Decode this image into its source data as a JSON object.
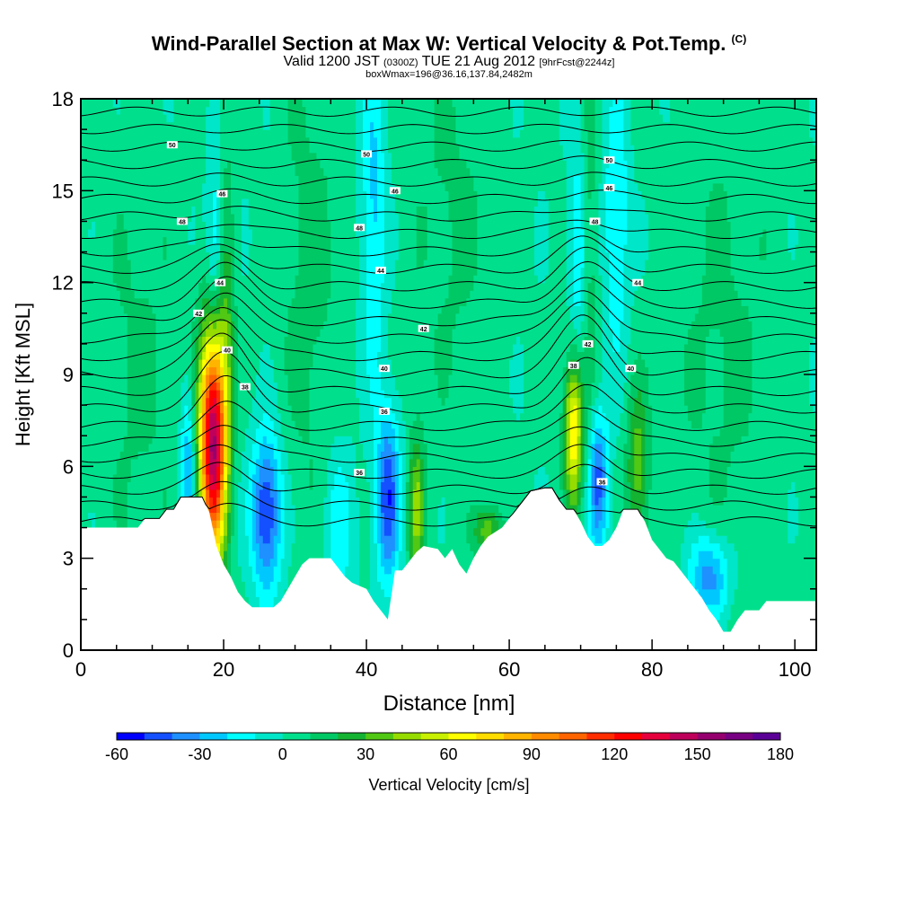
{
  "chart_data": {
    "type": "heatmap",
    "title": "Wind-Parallel Section at Max W: Vertical Velocity & Pot.Temp.",
    "title_mark": "(C)",
    "subtitle_main_a": "Valid 1200 JST",
    "subtitle_small_a": "(0300Z)",
    "subtitle_main_b": "TUE 21 Aug 2012",
    "subtitle_small_b": "[9hrFcst@2244z]",
    "subtitle2": "boxWmax=196@36.16,137.84,2482m",
    "xlabel": "Distance [nm]",
    "ylabel": "Height [Kft MSL]",
    "xlim": [
      0,
      103
    ],
    "ylim": [
      0,
      18
    ],
    "x_ticks": [
      "0",
      "20",
      "40",
      "60",
      "80",
      "100"
    ],
    "y_ticks": [
      "0",
      "3",
      "6",
      "9",
      "12",
      "15",
      "18"
    ],
    "colorbar": {
      "label": "Vertical Velocity [cm/s]",
      "range": [
        -60,
        180
      ],
      "step": 10,
      "tick_labels": [
        "-60",
        "-30",
        "0",
        "30",
        "60",
        "90",
        "120",
        "150",
        "180"
      ],
      "colors": [
        "#0000ff",
        "#1450ff",
        "#1e90ff",
        "#00c8ff",
        "#00ffff",
        "#00e6c8",
        "#00e08c",
        "#00c864",
        "#14b432",
        "#50c814",
        "#96dc00",
        "#c8f000",
        "#ffff00",
        "#ffdc00",
        "#ffb400",
        "#ff8c00",
        "#ff6400",
        "#ff2d00",
        "#ff0000",
        "#e6003c",
        "#be005a",
        "#96006e",
        "#780082",
        "#5a0096"
      ]
    },
    "terrain": [
      [
        0,
        4.0
      ],
      [
        8,
        4.0
      ],
      [
        9,
        4.3
      ],
      [
        11,
        4.3
      ],
      [
        12,
        4.6
      ],
      [
        13,
        4.6
      ],
      [
        14,
        5.0
      ],
      [
        17,
        5.0
      ],
      [
        18,
        4.5
      ],
      [
        19,
        3.4
      ],
      [
        20,
        2.8
      ],
      [
        21,
        2.4
      ],
      [
        22,
        1.9
      ],
      [
        23,
        1.6
      ],
      [
        24,
        1.4
      ],
      [
        27,
        1.4
      ],
      [
        28,
        1.6
      ],
      [
        29,
        2.0
      ],
      [
        30,
        2.4
      ],
      [
        31,
        2.8
      ],
      [
        32,
        3.0
      ],
      [
        35,
        3.0
      ],
      [
        36,
        2.7
      ],
      [
        37,
        2.4
      ],
      [
        38,
        2.2
      ],
      [
        40,
        2.0
      ],
      [
        41,
        1.6
      ],
      [
        42,
        1.3
      ],
      [
        43,
        1.0
      ],
      [
        44,
        2.6
      ],
      [
        45,
        2.6
      ],
      [
        46,
        2.9
      ],
      [
        47,
        3.2
      ],
      [
        48,
        3.4
      ],
      [
        50,
        3.3
      ],
      [
        51,
        3.0
      ],
      [
        52,
        3.3
      ],
      [
        53,
        2.8
      ],
      [
        54,
        2.5
      ],
      [
        55,
        3.0
      ],
      [
        56,
        3.4
      ],
      [
        57,
        3.7
      ],
      [
        59,
        4.0
      ],
      [
        60,
        4.3
      ],
      [
        61,
        4.6
      ],
      [
        62,
        4.9
      ],
      [
        63,
        5.2
      ],
      [
        65,
        5.3
      ],
      [
        66,
        5.3
      ],
      [
        67,
        4.9
      ],
      [
        68,
        4.6
      ],
      [
        69,
        4.6
      ],
      [
        70,
        4.2
      ],
      [
        71,
        3.7
      ],
      [
        72,
        3.4
      ],
      [
        73,
        3.4
      ],
      [
        74,
        3.6
      ],
      [
        75,
        4.0
      ],
      [
        76,
        4.6
      ],
      [
        77,
        4.6
      ],
      [
        78,
        4.6
      ],
      [
        79,
        4.2
      ],
      [
        80,
        3.6
      ],
      [
        81,
        3.3
      ],
      [
        82,
        3.0
      ],
      [
        83,
        2.9
      ],
      [
        84,
        2.6
      ],
      [
        85,
        2.3
      ],
      [
        86,
        2.0
      ],
      [
        87,
        1.7
      ],
      [
        88,
        1.3
      ],
      [
        89,
        1.0
      ],
      [
        90,
        0.6
      ],
      [
        91,
        0.6
      ],
      [
        92,
        1.0
      ],
      [
        93,
        1.3
      ],
      [
        95,
        1.3
      ],
      [
        96,
        1.6
      ],
      [
        103,
        1.6
      ]
    ],
    "updrafts": [
      {
        "x": 18.5,
        "y": 6.8,
        "sx": 1.3,
        "sy": 2.7,
        "w": 150
      },
      {
        "x": 20.0,
        "y": 11.5,
        "sx": 1.0,
        "sy": 3.5,
        "w": 30
      },
      {
        "x": 69.0,
        "y": 7.2,
        "sx": 0.9,
        "sy": 1.7,
        "w": 70
      },
      {
        "x": 71.0,
        "y": 13.0,
        "sx": 0.9,
        "sy": 3.8,
        "w": 25
      },
      {
        "x": 47.0,
        "y": 4.5,
        "sx": 0.8,
        "sy": 1.8,
        "w": 40
      },
      {
        "x": 78.0,
        "y": 6.0,
        "sx": 1.1,
        "sy": 1.8,
        "w": 35
      },
      {
        "x": 57.0,
        "y": 3.9,
        "sx": 1.4,
        "sy": 0.6,
        "w": 35
      },
      {
        "x": 8.0,
        "y": 9.0,
        "sx": 4.0,
        "sy": 5.0,
        "w": 10
      },
      {
        "x": 32.0,
        "y": 12.0,
        "sx": 3.0,
        "sy": 6.0,
        "w": 12
      },
      {
        "x": 52.0,
        "y": 14.0,
        "sx": 4.0,
        "sy": 5.0,
        "w": 10
      },
      {
        "x": 90.0,
        "y": 10.0,
        "sx": 5.0,
        "sy": 6.0,
        "w": 10
      }
    ],
    "downdrafts": [
      {
        "x": 15.0,
        "y": 6.0,
        "sx": 0.7,
        "sy": 1.8,
        "w": -35
      },
      {
        "x": 19.0,
        "y": 12.5,
        "sx": 0.9,
        "sy": 2.5,
        "w": -40
      },
      {
        "x": 26.0,
        "y": 4.5,
        "sx": 1.5,
        "sy": 1.8,
        "w": -55
      },
      {
        "x": 43.0,
        "y": 5.0,
        "sx": 1.2,
        "sy": 2.0,
        "w": -50
      },
      {
        "x": 70.0,
        "y": 13.0,
        "sx": 1.0,
        "sy": 2.8,
        "w": -30
      },
      {
        "x": 72.5,
        "y": 5.5,
        "sx": 1.0,
        "sy": 1.6,
        "w": -45
      },
      {
        "x": 88.0,
        "y": 2.4,
        "sx": 2.0,
        "sy": 1.0,
        "w": -40
      },
      {
        "x": 41.0,
        "y": 14.5,
        "sx": 1.2,
        "sy": 4.0,
        "w": -25
      },
      {
        "x": 75.0,
        "y": 14.0,
        "sx": 1.2,
        "sy": 3.0,
        "w": -25
      },
      {
        "x": 36.0,
        "y": 4.0,
        "sx": 1.5,
        "sy": 2.0,
        "w": -20
      }
    ],
    "isentrope_labels": [
      {
        "text": "50",
        "x": 12.8,
        "y": 16.5
      },
      {
        "text": "50",
        "x": 40.0,
        "y": 16.2
      },
      {
        "text": "50",
        "x": 74.0,
        "y": 16.0
      },
      {
        "text": "46",
        "x": 19.8,
        "y": 14.9
      },
      {
        "text": "46",
        "x": 44.0,
        "y": 15.0
      },
      {
        "text": "46",
        "x": 74.0,
        "y": 15.1
      },
      {
        "text": "48",
        "x": 14.2,
        "y": 14.0
      },
      {
        "text": "48",
        "x": 39.0,
        "y": 13.8
      },
      {
        "text": "48",
        "x": 72.0,
        "y": 14.0
      },
      {
        "text": "44",
        "x": 42.0,
        "y": 12.4
      },
      {
        "text": "44",
        "x": 19.5,
        "y": 12.0
      },
      {
        "text": "44",
        "x": 78.0,
        "y": 12.0
      },
      {
        "text": "42",
        "x": 16.5,
        "y": 11.0
      },
      {
        "text": "42",
        "x": 48.0,
        "y": 10.5
      },
      {
        "text": "42",
        "x": 71.0,
        "y": 10.0
      },
      {
        "text": "40",
        "x": 20.5,
        "y": 9.8
      },
      {
        "text": "40",
        "x": 42.5,
        "y": 9.2
      },
      {
        "text": "40",
        "x": 77.0,
        "y": 9.2
      },
      {
        "text": "38",
        "x": 23.0,
        "y": 8.6
      },
      {
        "text": "38",
        "x": 69.0,
        "y": 9.3
      },
      {
        "text": "36",
        "x": 42.5,
        "y": 7.8
      },
      {
        "text": "36",
        "x": 39.0,
        "y": 5.8
      },
      {
        "text": "36",
        "x": 73.0,
        "y": 5.5
      }
    ]
  }
}
